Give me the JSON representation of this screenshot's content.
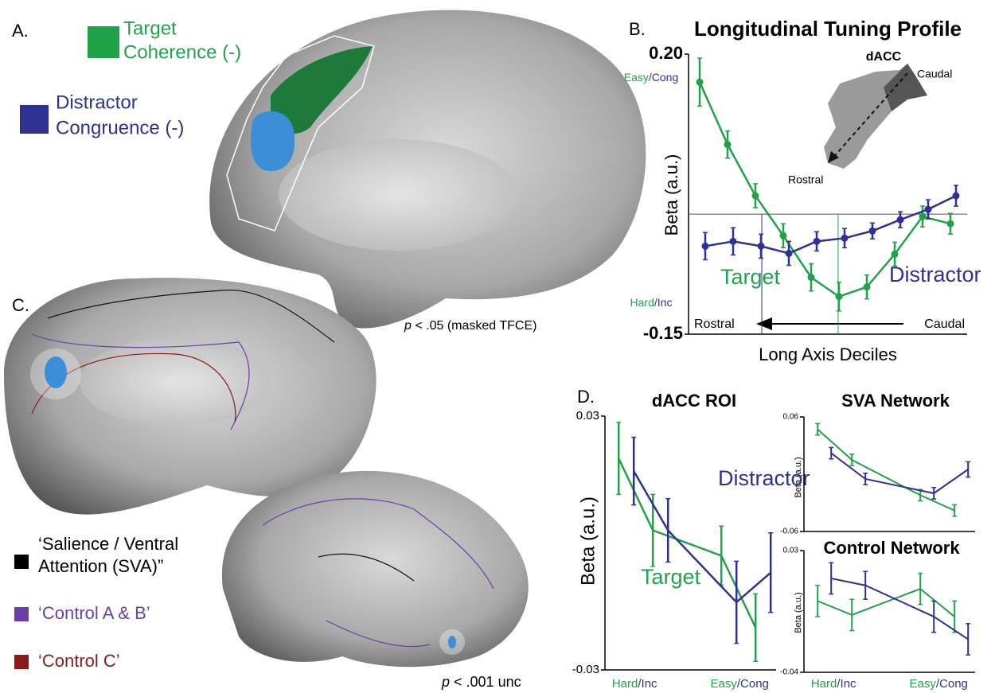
{
  "panels": {
    "A": "A.",
    "B": "B.",
    "C": "C.",
    "D": "D."
  },
  "panel_a": {
    "legend": [
      {
        "label": [
          "Target",
          "Coherence (-)"
        ],
        "color": "#22a14b"
      },
      {
        "label": [
          "Distractor",
          "Congruence (-)"
        ],
        "color": "#2e3192"
      }
    ],
    "threshold": {
      "p": "p",
      "rest": " < .05 (masked TFCE)"
    }
  },
  "panel_c": {
    "legend": [
      {
        "label": [
          "‘Salience / Ventral",
          "Attention (SVA)”"
        ],
        "color": "#000000"
      },
      {
        "label": [
          "‘Control A & B’"
        ],
        "color": "#6a3fa8"
      },
      {
        "label": [
          "‘Control C’"
        ],
        "color": "#8b1a1a"
      }
    ],
    "threshold": {
      "p": "p",
      "rest": " < .001 unc"
    }
  },
  "chart_data": [
    {
      "type": "line",
      "title": "Longitudinal Tuning Profile",
      "x_label": "Long Axis Deciles",
      "y_label": "Beta (a.u.)",
      "x": [
        1,
        2,
        3,
        4,
        5,
        6,
        7,
        8,
        9,
        10
      ],
      "xlim": [
        0.6,
        10.6
      ],
      "ylim": [
        -0.15,
        0.2
      ],
      "yticks": [
        -0.15,
        {
          "value": 0.2,
          "label": "0.20"
        }
      ],
      "hline": 0,
      "vlines": [
        {
          "x": 3.23,
          "color": "#2e3192"
        },
        {
          "x": 5.97,
          "color": "#22a14b"
        }
      ],
      "series": [
        {
          "name": "Target",
          "color": "#22a14b",
          "values": [
            0.165,
            0.087,
            0.023,
            -0.027,
            -0.079,
            -0.103,
            -0.091,
            -0.05,
            -0.003,
            -0.012
          ],
          "errors": [
            0.03,
            0.017,
            0.015,
            0.015,
            0.017,
            0.018,
            0.015,
            0.015,
            0.013,
            0.013
          ]
        },
        {
          "name": "Distractor",
          "color": "#2e3192",
          "values": [
            -0.04,
            -0.034,
            -0.04,
            -0.049,
            -0.034,
            -0.03,
            -0.021,
            -0.007,
            0.006,
            0.023
          ],
          "errors": [
            0.017,
            0.017,
            0.015,
            0.015,
            0.012,
            0.012,
            0.01,
            0.01,
            0.012,
            0.013
          ]
        }
      ],
      "annotations": {
        "top": [
          "Easy",
          "/Cong"
        ],
        "bottom": [
          "Hard",
          "/Inc"
        ],
        "inset_title": "dACC",
        "inset_caudal": "Caudal",
        "inset_rostral": "Rostral",
        "axis_rostral": "Rostral",
        "axis_caudal": "Caudal"
      }
    },
    {
      "type": "line",
      "title": "dACC ROI",
      "y_label": "Beta (a.u.)",
      "x": [
        1,
        2,
        4,
        5
      ],
      "xlim": [
        0.6,
        5.6
      ],
      "ylim": [
        -0.03,
        0.03
      ],
      "yticks": [
        -0.03,
        0.03
      ],
      "series": [
        {
          "name": "Target",
          "color": "#22a14b",
          "values": [
            0.02,
            0.003,
            -0.003,
            -0.02
          ],
          "errors": [
            0.0085,
            0.0085,
            0.007,
            0.008
          ]
        },
        {
          "name": "Distractor",
          "color": "#2e3192",
          "values": [
            0.017,
            0.003,
            -0.014,
            -0.007
          ],
          "errors": [
            0.008,
            0.0075,
            0.0097,
            0.0094
          ]
        }
      ],
      "annotations": {
        "left": [
          "Hard",
          "/Inc"
        ],
        "right": [
          "Easy",
          "/Cong"
        ]
      }
    },
    {
      "type": "line",
      "title": "SVA Network",
      "y_label": "Beta (a.u.)",
      "x": [
        1,
        2,
        4,
        5
      ],
      "xlim": [
        0.6,
        5.6
      ],
      "ylim": [
        -0.06,
        0.06
      ],
      "yticks": [
        -0.06,
        0.06
      ],
      "series": [
        {
          "color": "#22a14b",
          "values": [
            0.047,
            0.015,
            -0.022,
            -0.038
          ],
          "errors": [
            0.006,
            0.006,
            0.006,
            0.006
          ]
        },
        {
          "color": "#2e3192",
          "values": [
            0.022,
            -0.005,
            -0.02,
            0.005
          ],
          "errors": [
            0.006,
            0.006,
            0.006,
            0.008
          ]
        }
      ]
    },
    {
      "type": "line",
      "title": "Control Network",
      "y_label": "Beta (a.u.)",
      "x": [
        1,
        2,
        4,
        5
      ],
      "xlim": [
        0.6,
        5.6
      ],
      "ylim": [
        -0.04,
        0.03
      ],
      "yticks": [
        -0.04,
        0.03
      ],
      "series": [
        {
          "color": "#22a14b",
          "values": [
            0.001,
            -0.007,
            0.008,
            -0.008
          ],
          "errors": [
            0.009,
            0.009,
            0.009,
            0.009
          ]
        },
        {
          "color": "#2e3192",
          "values": [
            0.014,
            0.01,
            -0.008,
            -0.021
          ],
          "errors": [
            0.009,
            0.008,
            0.009,
            0.009
          ]
        }
      ],
      "annotations": {
        "left": [
          "Hard",
          "/Inc"
        ],
        "right": [
          "Easy",
          "/Cong"
        ]
      }
    }
  ]
}
